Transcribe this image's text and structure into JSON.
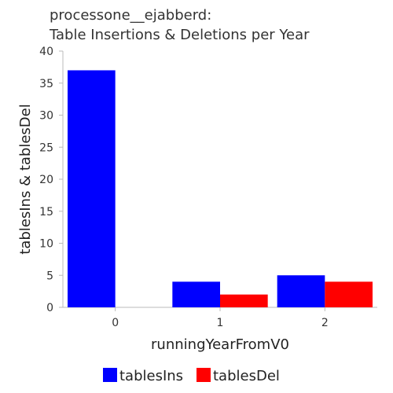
{
  "chart_data": {
    "type": "bar",
    "title_lines": [
      "processone__ejabberd:",
      "Table Insertions & Deletions per Year"
    ],
    "xlabel": "runningYearFromV0",
    "ylabel": "tablesIns & tablesDel",
    "categories": [
      "0",
      "1",
      "2"
    ],
    "series": [
      {
        "name": "tablesIns",
        "values": [
          37,
          4,
          5
        ],
        "color": "#0000ff"
      },
      {
        "name": "tablesDel",
        "values": [
          0,
          2,
          4
        ],
        "color": "#ff0000"
      }
    ],
    "ylim": [
      0,
      40
    ],
    "yticks": [
      0,
      5,
      10,
      15,
      20,
      25,
      30,
      35,
      40
    ],
    "grid": false,
    "legend_position": "bottom"
  }
}
